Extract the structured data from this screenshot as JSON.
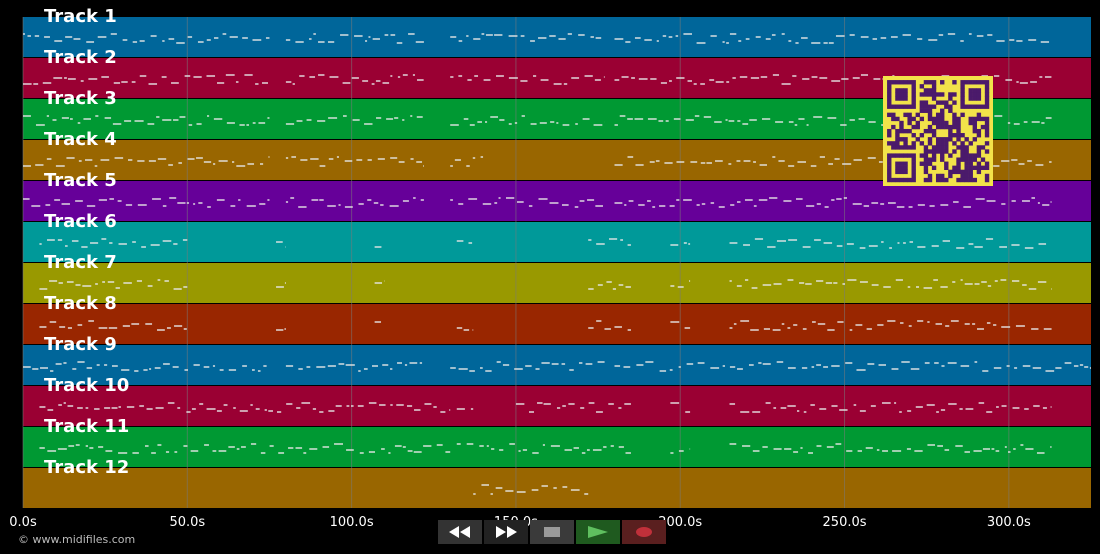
{
  "tracks": [
    {
      "label": "Track 1",
      "color": "#00669a"
    },
    {
      "label": "Track 2",
      "color": "#9a0033"
    },
    {
      "label": "Track 3",
      "color": "#009933"
    },
    {
      "label": "Track 4",
      "color": "#996600"
    },
    {
      "label": "Track 5",
      "color": "#660099"
    },
    {
      "label": "Track 6",
      "color": "#009999"
    },
    {
      "label": "Track 7",
      "color": "#999900"
    },
    {
      "label": "Track 8",
      "color": "#992600"
    },
    {
      "label": "Track 9",
      "color": "#00669a"
    },
    {
      "label": "Track 10",
      "color": "#9a0033"
    },
    {
      "label": "Track 11",
      "color": "#009933"
    },
    {
      "label": "Track 12",
      "color": "#996600"
    }
  ],
  "timeline": {
    "max_seconds": 325,
    "ticks": [
      {
        "value": 0,
        "label": "0.0s"
      },
      {
        "value": 50,
        "label": "50.0s"
      },
      {
        "value": 100,
        "label": "100.0s"
      },
      {
        "value": 150,
        "label": "150.0s"
      },
      {
        "value": 200,
        "label": "200.0s"
      },
      {
        "value": 250,
        "label": "250.0s"
      },
      {
        "value": 300,
        "label": "300.0s"
      }
    ]
  },
  "copyright": "© www.midifiles.com",
  "controls": {
    "rewind": {
      "icon": "rewind-icon",
      "color": "#333333"
    },
    "fast_forward": {
      "icon": "fast-forward-icon",
      "color": "#222222"
    },
    "stop": {
      "icon": "stop-icon",
      "color": "#3a3a3a"
    },
    "play": {
      "icon": "play-icon",
      "color": "#1f5a1f"
    },
    "record": {
      "icon": "record-icon",
      "color": "#5a1f1f"
    }
  },
  "qr": {
    "foreground": "#4b1a6b",
    "background": "#f2e34a"
  },
  "colors": {
    "note": "#e6e6e6",
    "grid": "#7a7a7a",
    "background": "#000000"
  }
}
